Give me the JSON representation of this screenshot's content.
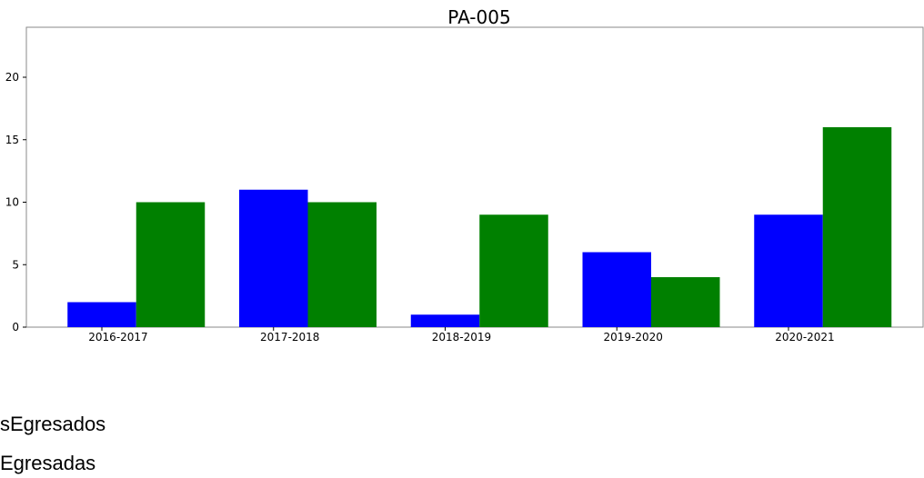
{
  "chart_data": {
    "type": "bar",
    "title": "PA-005",
    "xlabel": "",
    "ylabel": "",
    "categories": [
      "2016-2017",
      "2017-2018",
      "2018-2019",
      "2019-2020",
      "2020-2021"
    ],
    "series": [
      {
        "name": "sEgresados",
        "color": "#0000ff",
        "values": [
          2,
          11,
          1,
          6,
          9
        ]
      },
      {
        "name": "Egresadas",
        "color": "#008000",
        "values": [
          10,
          10,
          9,
          4,
          16
        ]
      }
    ],
    "ylim": [
      0,
      24
    ],
    "yticks": [
      0,
      5,
      10,
      15,
      20
    ],
    "grid": false,
    "legend_position": "bottom-left"
  }
}
